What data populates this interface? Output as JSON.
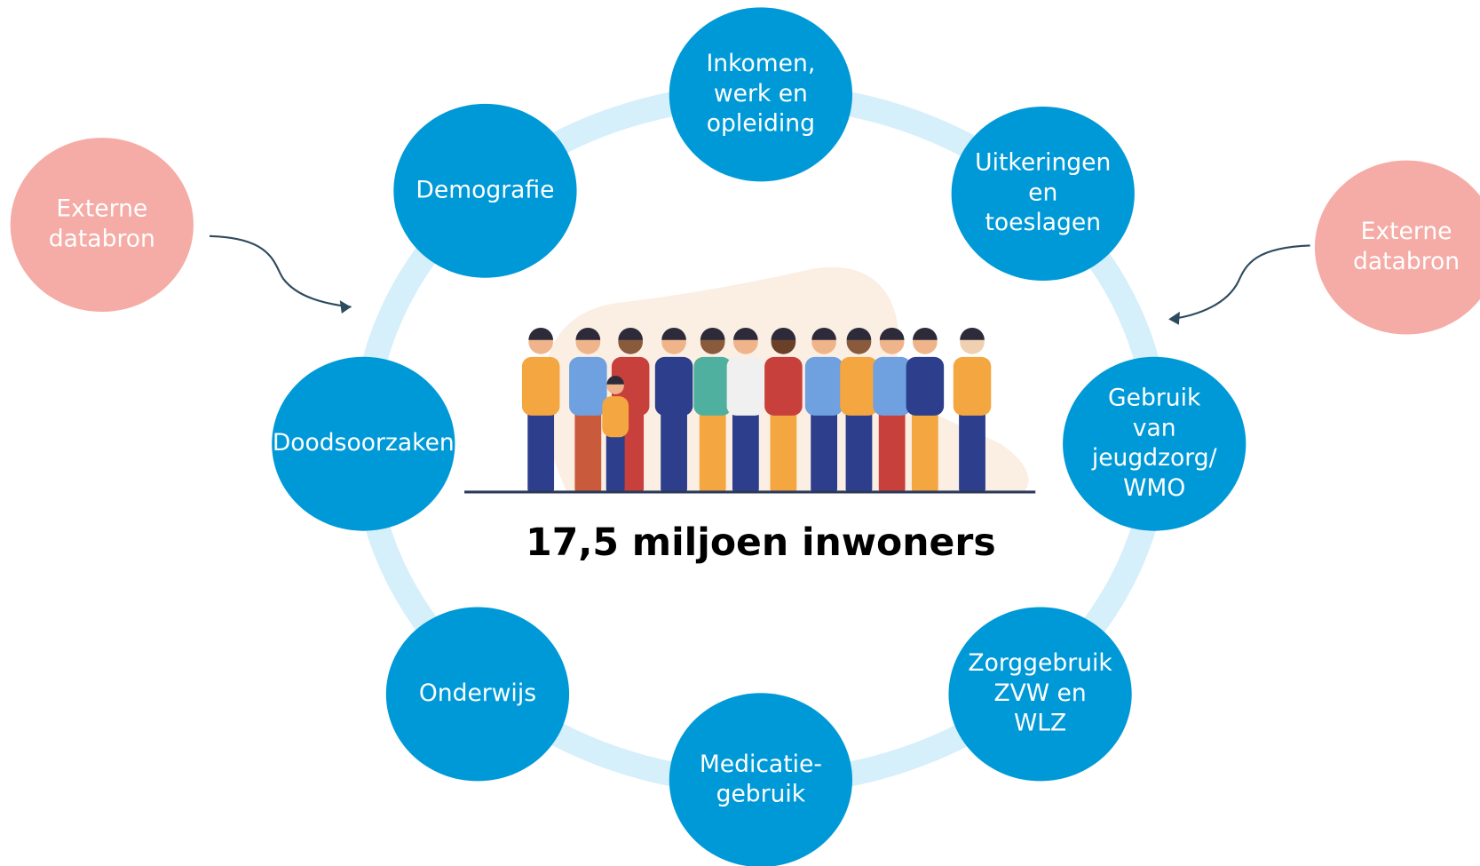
{
  "center_label": "17,5 miljoen inwoners",
  "nodes": [
    {
      "lines": [
        "Inkomen,",
        "werk en",
        "opleiding"
      ]
    },
    {
      "lines": [
        "Uitkeringen",
        "en",
        "toeslagen"
      ]
    },
    {
      "lines": [
        "Gebruik",
        "van",
        "jeugdzorg/",
        "WMO"
      ]
    },
    {
      "lines": [
        "Zorggebruik",
        "ZVW en",
        "WLZ"
      ]
    },
    {
      "lines": [
        "Medicatie-",
        "gebruik"
      ]
    },
    {
      "lines": [
        "Onderwijs"
      ]
    },
    {
      "lines": [
        "Doodsoorzaken"
      ]
    },
    {
      "lines": [
        "Demografie"
      ]
    }
  ],
  "external_sources": [
    {
      "lines": [
        "Externe",
        "databron"
      ]
    },
    {
      "lines": [
        "Externe",
        "databron"
      ]
    }
  ]
}
